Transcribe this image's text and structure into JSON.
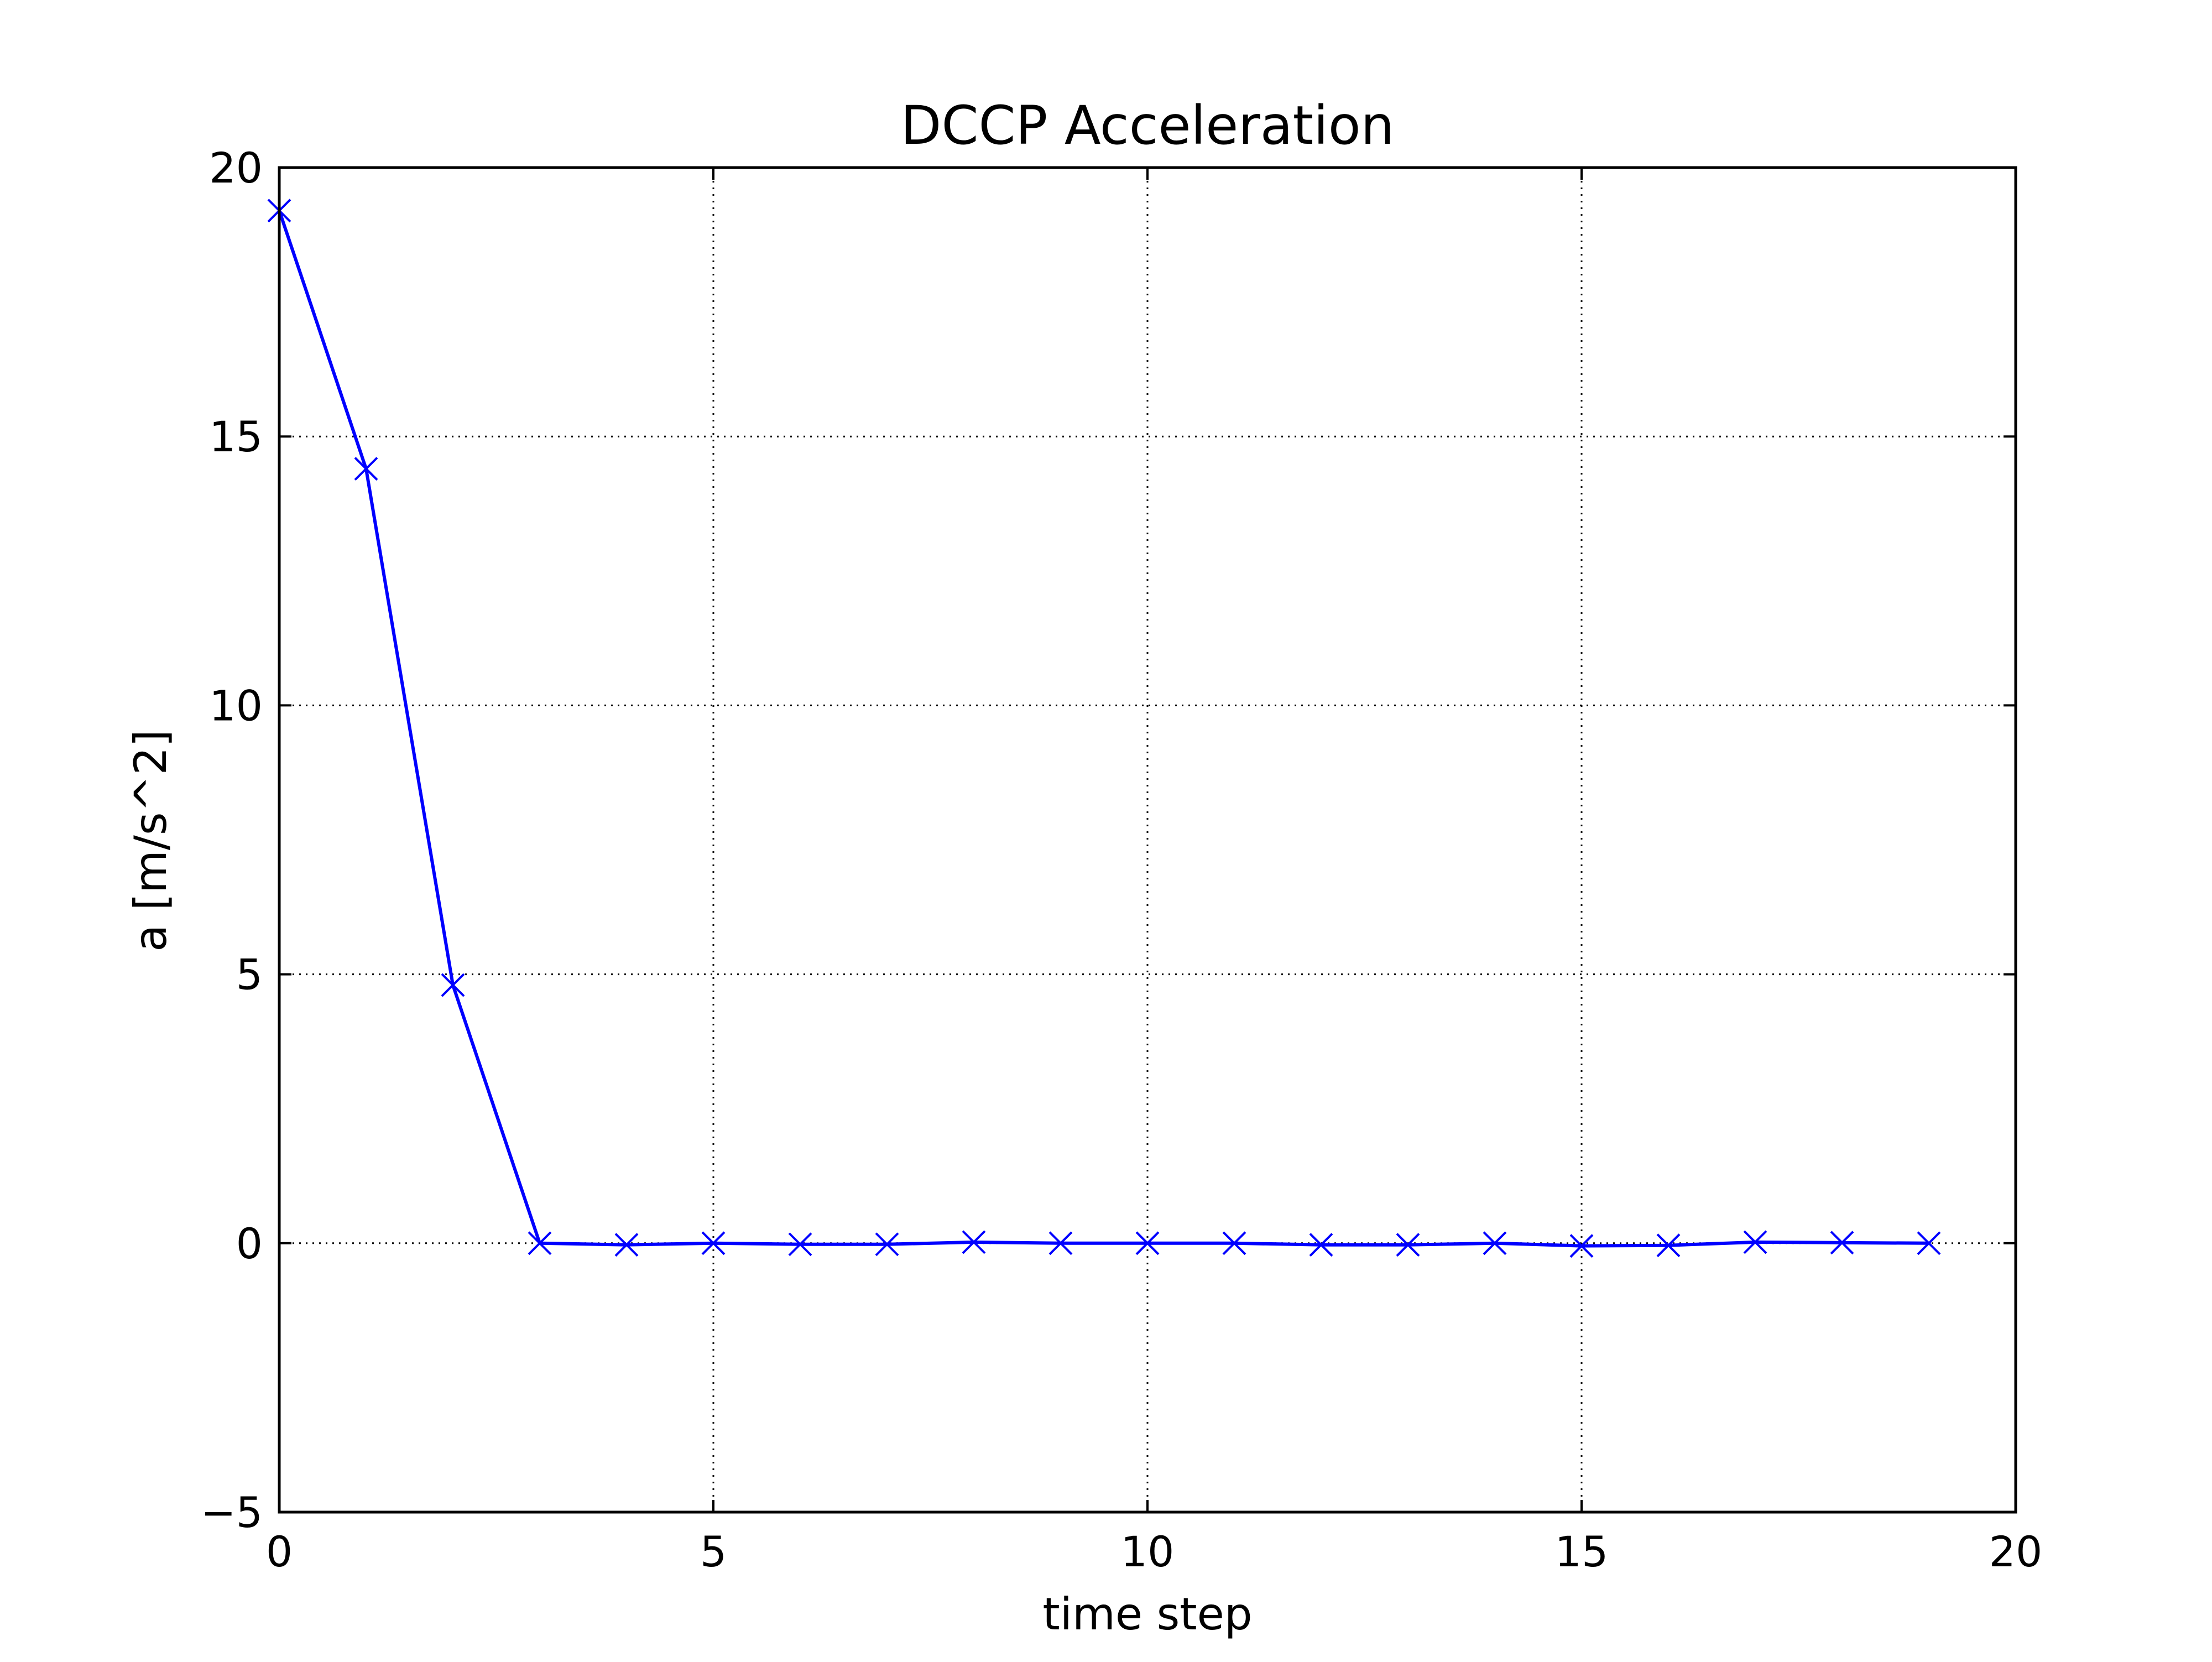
{
  "chart_data": {
    "type": "line",
    "title": "DCCP Acceleration",
    "xlabel": "time step",
    "ylabel": "a [m/s^2]",
    "xlim": [
      0,
      20
    ],
    "ylim": [
      -5,
      20
    ],
    "xticks": [
      0,
      5,
      10,
      15,
      20
    ],
    "yticks": [
      -5,
      0,
      5,
      10,
      15,
      20
    ],
    "xtick_labels": [
      "0",
      "5",
      "10",
      "15",
      "20"
    ],
    "ytick_labels": [
      "−5",
      "0",
      "5",
      "10",
      "15",
      "20"
    ],
    "grid": true,
    "grid_style": "dotted",
    "series": [
      {
        "color": "#0000ff",
        "marker": "x",
        "x": [
          0,
          1,
          2,
          3,
          4,
          5,
          6,
          7,
          8,
          9,
          10,
          11,
          12,
          13,
          14,
          15,
          16,
          17,
          18,
          19
        ],
        "values": [
          19.2,
          14.4,
          4.8,
          0.0,
          -0.03,
          0.0,
          -0.02,
          -0.02,
          0.02,
          0.0,
          0.0,
          0.0,
          -0.03,
          -0.03,
          0.0,
          -0.05,
          -0.04,
          0.02,
          0.01,
          0.0
        ]
      }
    ]
  }
}
